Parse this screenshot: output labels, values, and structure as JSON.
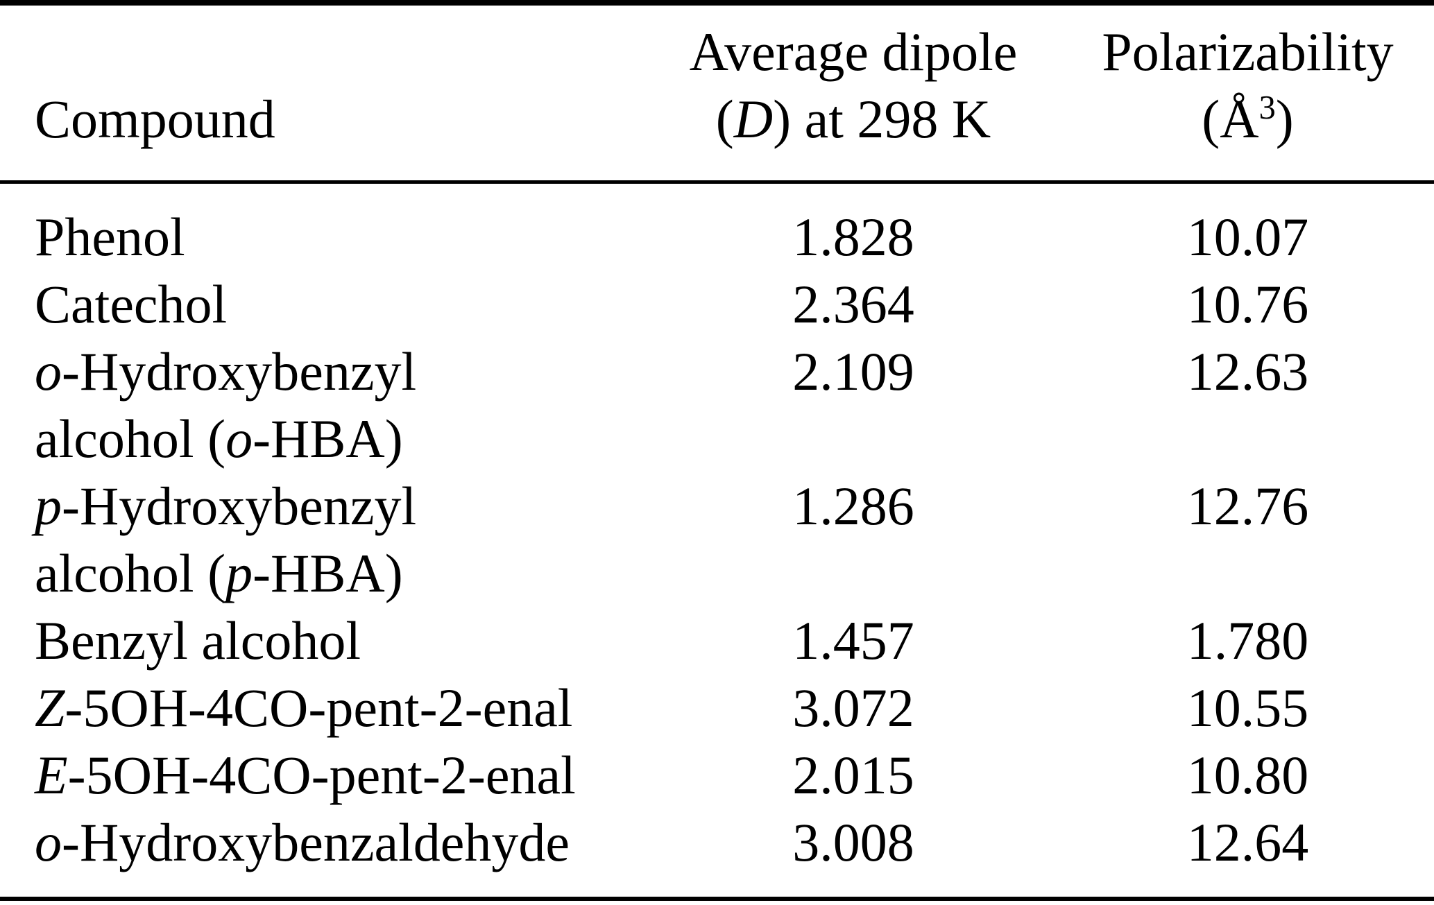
{
  "table": {
    "header": {
      "compound_label": "Compound",
      "dipole_line1": "Average dipole",
      "dipole_line2": [
        {
          "t": "("
        },
        {
          "t": "D",
          "i": true
        },
        {
          "t": ") at 298 K"
        }
      ],
      "polar_line1": "Polarizability",
      "polar_line2": [
        {
          "t": "(Å"
        },
        {
          "t": "3",
          "sup": true
        },
        {
          "t": ")"
        }
      ]
    },
    "rows": [
      {
        "lines": [
          [
            {
              "t": "Phenol"
            }
          ]
        ],
        "dipole": "1.828",
        "polar": "10.07"
      },
      {
        "lines": [
          [
            {
              "t": "Catechol"
            }
          ]
        ],
        "dipole": "2.364",
        "polar": "10.76"
      },
      {
        "lines": [
          [
            {
              "t": "o",
              "i": true
            },
            {
              "t": "-Hydroxybenzyl"
            }
          ],
          [
            {
              "t": "alcohol ("
            },
            {
              "t": "o",
              "i": true
            },
            {
              "t": "-HBA)"
            }
          ]
        ],
        "dipole": "2.109",
        "polar": "12.63"
      },
      {
        "lines": [
          [
            {
              "t": "p",
              "i": true
            },
            {
              "t": "-Hydroxybenzyl"
            }
          ],
          [
            {
              "t": "alcohol ("
            },
            {
              "t": "p",
              "i": true
            },
            {
              "t": "-HBA)"
            }
          ]
        ],
        "dipole": "1.286",
        "polar": "12.76"
      },
      {
        "lines": [
          [
            {
              "t": "Benzyl alcohol"
            }
          ]
        ],
        "dipole": "1.457",
        "polar": "1.780"
      },
      {
        "lines": [
          [
            {
              "t": "Z",
              "i": true
            },
            {
              "t": "-5OH-4CO-pent-2-enal"
            }
          ]
        ],
        "dipole": "3.072",
        "polar": "10.55"
      },
      {
        "lines": [
          [
            {
              "t": "E",
              "i": true
            },
            {
              "t": "-5OH-4CO-pent-2-enal"
            }
          ]
        ],
        "dipole": "2.015",
        "polar": "10.80"
      },
      {
        "lines": [
          [
            {
              "t": "o",
              "i": true
            },
            {
              "t": "-Hydroxybenzaldehyde"
            }
          ]
        ],
        "dipole": "3.008",
        "polar": "12.64"
      }
    ]
  },
  "colors": {
    "text": "#000000",
    "background": "#ffffff",
    "rule": "#000000"
  },
  "chart_data": {
    "type": "table",
    "title": "",
    "columns": [
      "Compound",
      "Average dipole (D) at 298 K",
      "Polarizability (Å3)"
    ],
    "rows": [
      [
        "Phenol",
        1.828,
        10.07
      ],
      [
        "Catechol",
        2.364,
        10.76
      ],
      [
        "o-Hydroxybenzyl alcohol (o-HBA)",
        2.109,
        12.63
      ],
      [
        "p-Hydroxybenzyl alcohol (p-HBA)",
        1.286,
        12.76
      ],
      [
        "Benzyl alcohol",
        1.457,
        1.78
      ],
      [
        "Z-5OH-4CO-pent-2-enal",
        3.072,
        10.55
      ],
      [
        "E-5OH-4CO-pent-2-enal",
        2.015,
        10.8
      ],
      [
        "o-Hydroxybenzaldehyde",
        3.008,
        12.64
      ]
    ]
  }
}
